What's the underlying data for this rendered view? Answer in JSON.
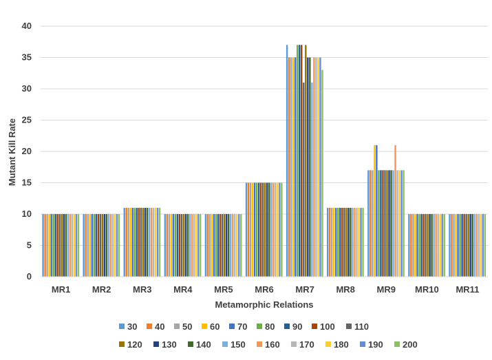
{
  "chart_data": {
    "type": "bar",
    "title": "",
    "xlabel": "Metamorphic Relations",
    "ylabel": "Mutant Kill Rate",
    "ylim": [
      0,
      40
    ],
    "yticks": [
      0,
      5,
      10,
      15,
      20,
      25,
      30,
      35,
      40
    ],
    "grid": true,
    "legend_position": "bottom",
    "categories": [
      "MR1",
      "MR2",
      "MR3",
      "MR4",
      "MR5",
      "MR6",
      "MR7",
      "MR8",
      "MR9",
      "MR10",
      "MR11"
    ],
    "series": [
      {
        "name": "30",
        "color": "#5B9BD5",
        "values": [
          10,
          10,
          11,
          10,
          10,
          15,
          37,
          11,
          17,
          10,
          10
        ]
      },
      {
        "name": "40",
        "color": "#ED7D31",
        "values": [
          10,
          10,
          11,
          10,
          10,
          15,
          35,
          11,
          17,
          10,
          10
        ]
      },
      {
        "name": "50",
        "color": "#A5A5A5",
        "values": [
          10,
          10,
          11,
          10,
          10,
          15,
          35,
          11,
          17,
          10,
          10
        ]
      },
      {
        "name": "60",
        "color": "#FFC000",
        "values": [
          10,
          10,
          11,
          10,
          10,
          15,
          35,
          11,
          21,
          10,
          10
        ]
      },
      {
        "name": "70",
        "color": "#4472C4",
        "values": [
          10,
          10,
          11,
          10,
          10,
          15,
          35,
          11,
          21,
          10,
          10
        ]
      },
      {
        "name": "80",
        "color": "#70AD47",
        "values": [
          10,
          10,
          11,
          10,
          10,
          15,
          37,
          11,
          17,
          10,
          10
        ]
      },
      {
        "name": "90",
        "color": "#255E91",
        "values": [
          10,
          10,
          11,
          10,
          10,
          15,
          37,
          11,
          17,
          10,
          10
        ]
      },
      {
        "name": "100",
        "color": "#9E480E",
        "values": [
          10,
          10,
          11,
          10,
          10,
          15,
          37,
          11,
          17,
          10,
          10
        ]
      },
      {
        "name": "110",
        "color": "#636363",
        "values": [
          10,
          10,
          11,
          10,
          10,
          15,
          31,
          11,
          17,
          10,
          10
        ]
      },
      {
        "name": "120",
        "color": "#997300",
        "values": [
          10,
          10,
          11,
          10,
          10,
          15,
          37,
          11,
          17,
          10,
          10
        ]
      },
      {
        "name": "130",
        "color": "#264478",
        "values": [
          10,
          10,
          11,
          10,
          10,
          15,
          35,
          11,
          17,
          10,
          10
        ]
      },
      {
        "name": "140",
        "color": "#43682B",
        "values": [
          10,
          10,
          11,
          10,
          10,
          15,
          35,
          11,
          17,
          10,
          10
        ]
      },
      {
        "name": "150",
        "color": "#7CAFDD",
        "values": [
          10,
          10,
          11,
          10,
          10,
          15,
          31,
          11,
          17,
          10,
          10
        ]
      },
      {
        "name": "160",
        "color": "#F1975A",
        "values": [
          10,
          10,
          11,
          10,
          10,
          15,
          35,
          11,
          21,
          10,
          10
        ]
      },
      {
        "name": "170",
        "color": "#B7B7B7",
        "values": [
          10,
          10,
          11,
          10,
          10,
          15,
          35,
          11,
          17,
          10,
          10
        ]
      },
      {
        "name": "180",
        "color": "#FFCD33",
        "values": [
          10,
          10,
          11,
          10,
          10,
          15,
          35,
          11,
          17,
          10,
          10
        ]
      },
      {
        "name": "190",
        "color": "#698ED0",
        "values": [
          10,
          10,
          11,
          10,
          10,
          15,
          35,
          11,
          17,
          10,
          10
        ]
      },
      {
        "name": "200",
        "color": "#8CC168",
        "values": [
          10,
          10,
          11,
          10,
          10,
          15,
          33,
          11,
          17,
          10,
          10
        ]
      }
    ]
  }
}
